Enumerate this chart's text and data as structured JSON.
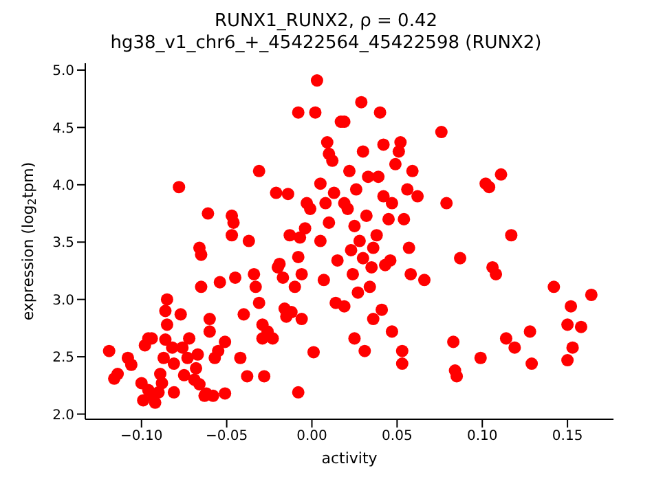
{
  "chart_data": {
    "type": "scatter",
    "title": "RUNX1_RUNX2, ρ = 0.42",
    "subtitle": "hg38_v1_chr6_+_45422564_45422598 (RUNX2)",
    "xlabel": "activity",
    "ylabel": "expression (log$_{2}$tpm)",
    "marker": "circle",
    "grid": false,
    "legend": false,
    "xlim": [
      -0.133,
      0.177
    ],
    "ylim": [
      1.955,
      5.06
    ],
    "xticks": [
      {
        "value": -0.1,
        "label": "−0.10"
      },
      {
        "value": -0.05,
        "label": "−0.05"
      },
      {
        "value": 0,
        "label": "0.00"
      },
      {
        "value": 0.05,
        "label": "0.05"
      },
      {
        "value": 0.1,
        "label": "0.10"
      },
      {
        "value": 0.15,
        "label": "0.15"
      }
    ],
    "yticks": [
      {
        "value": 2,
        "label": "2.0"
      },
      {
        "value": 2.5,
        "label": "2.5"
      },
      {
        "value": 3,
        "label": "3.0"
      },
      {
        "value": 3.5,
        "label": "3.5"
      },
      {
        "value": 4,
        "label": "4.0"
      },
      {
        "value": 4.5,
        "label": "4.5"
      },
      {
        "value": 5,
        "label": "5.0"
      }
    ],
    "series": [
      {
        "color": "#ff0000",
        "x": [
          -0.119,
          -0.114,
          -0.116,
          -0.108,
          -0.106,
          -0.1,
          -0.099,
          -0.098,
          -0.096,
          -0.094,
          -0.096,
          -0.093,
          -0.092,
          -0.09,
          -0.089,
          -0.088,
          -0.087,
          -0.086,
          -0.085,
          -0.086,
          -0.085,
          -0.082,
          -0.081,
          -0.081,
          -0.077,
          -0.078,
          -0.076,
          -0.075,
          -0.073,
          -0.072,
          -0.069,
          -0.068,
          -0.067,
          -0.066,
          -0.065,
          -0.066,
          -0.065,
          -0.063,
          -0.062,
          -0.061,
          -0.06,
          -0.06,
          -0.058,
          -0.057,
          -0.054,
          -0.055,
          -0.051,
          -0.051,
          -0.047,
          -0.047,
          -0.046,
          -0.045,
          -0.042,
          -0.04,
          -0.038,
          -0.037,
          -0.034,
          -0.033,
          -0.031,
          -0.031,
          -0.029,
          -0.029,
          -0.028,
          -0.026,
          -0.023,
          -0.021,
          -0.02,
          -0.019,
          -0.017,
          -0.016,
          -0.015,
          -0.014,
          -0.013,
          -0.012,
          -0.01,
          -0.008,
          -0.008,
          -0.008,
          -0.006,
          -0.007,
          -0.006,
          -0.004,
          -0.003,
          -0.001,
          0.001,
          0.003,
          0.002,
          0.005,
          0.005,
          0.007,
          0.008,
          0.009,
          0.01,
          0.01,
          0.012,
          0.013,
          0.014,
          0.015,
          0.017,
          0.019,
          0.019,
          0.019,
          0.021,
          0.022,
          0.023,
          0.024,
          0.025,
          0.025,
          0.026,
          0.027,
          0.028,
          0.029,
          0.03,
          0.03,
          0.031,
          0.032,
          0.033,
          0.034,
          0.035,
          0.036,
          0.036,
          0.038,
          0.039,
          0.04,
          0.041,
          0.042,
          0.042,
          0.043,
          0.045,
          0.046,
          0.047,
          0.047,
          0.049,
          0.051,
          0.052,
          0.053,
          0.053,
          0.054,
          0.056,
          0.057,
          0.058,
          0.059,
          0.062,
          0.066,
          0.076,
          0.079,
          0.083,
          0.084,
          0.085,
          0.087,
          0.099,
          0.102,
          0.104,
          0.106,
          0.108,
          0.111,
          0.114,
          0.117,
          0.119,
          0.128,
          0.129,
          0.142,
          0.15,
          0.15,
          0.152,
          0.153,
          0.158,
          0.164
        ],
        "values": [
          2.55,
          2.35,
          2.31,
          2.49,
          2.43,
          2.27,
          2.12,
          2.6,
          2.66,
          2.66,
          2.21,
          2.16,
          2.1,
          2.19,
          2.35,
          2.27,
          2.49,
          2.65,
          3.0,
          2.9,
          2.78,
          2.58,
          2.44,
          2.19,
          2.87,
          3.98,
          2.58,
          2.34,
          2.49,
          2.66,
          2.3,
          2.4,
          2.52,
          2.26,
          3.11,
          3.45,
          3.39,
          2.16,
          2.18,
          3.75,
          2.83,
          2.72,
          2.16,
          2.49,
          3.15,
          2.55,
          2.18,
          2.63,
          3.56,
          3.73,
          3.67,
          3.19,
          2.49,
          2.87,
          2.33,
          3.51,
          3.22,
          3.11,
          2.97,
          4.12,
          2.66,
          2.78,
          2.33,
          2.72,
          2.66,
          3.93,
          3.28,
          3.31,
          3.19,
          2.92,
          2.85,
          3.92,
          3.56,
          2.89,
          3.11,
          2.19,
          4.63,
          3.37,
          2.83,
          3.54,
          3.22,
          3.62,
          3.84,
          3.79,
          2.54,
          4.91,
          4.63,
          4.01,
          3.51,
          3.17,
          3.84,
          4.37,
          4.27,
          3.67,
          4.21,
          3.93,
          2.97,
          3.34,
          4.55,
          4.55,
          3.84,
          2.94,
          3.79,
          4.12,
          3.43,
          3.22,
          3.64,
          2.66,
          3.96,
          3.06,
          3.51,
          4.72,
          4.29,
          3.36,
          2.55,
          3.73,
          4.07,
          3.11,
          3.28,
          3.45,
          2.83,
          3.56,
          4.07,
          4.63,
          2.91,
          4.35,
          3.9,
          3.3,
          3.7,
          3.34,
          2.72,
          3.84,
          4.18,
          4.29,
          4.37,
          2.55,
          2.44,
          3.7,
          3.96,
          3.45,
          3.22,
          4.12,
          3.9,
          3.17,
          4.46,
          3.84,
          2.63,
          2.38,
          2.33,
          3.36,
          2.49,
          4.01,
          3.98,
          3.28,
          3.22,
          4.09,
          2.66,
          3.56,
          2.58,
          2.72,
          2.44,
          3.11,
          2.78,
          2.47,
          2.94,
          2.58,
          2.76,
          3.04
        ]
      }
    ]
  }
}
